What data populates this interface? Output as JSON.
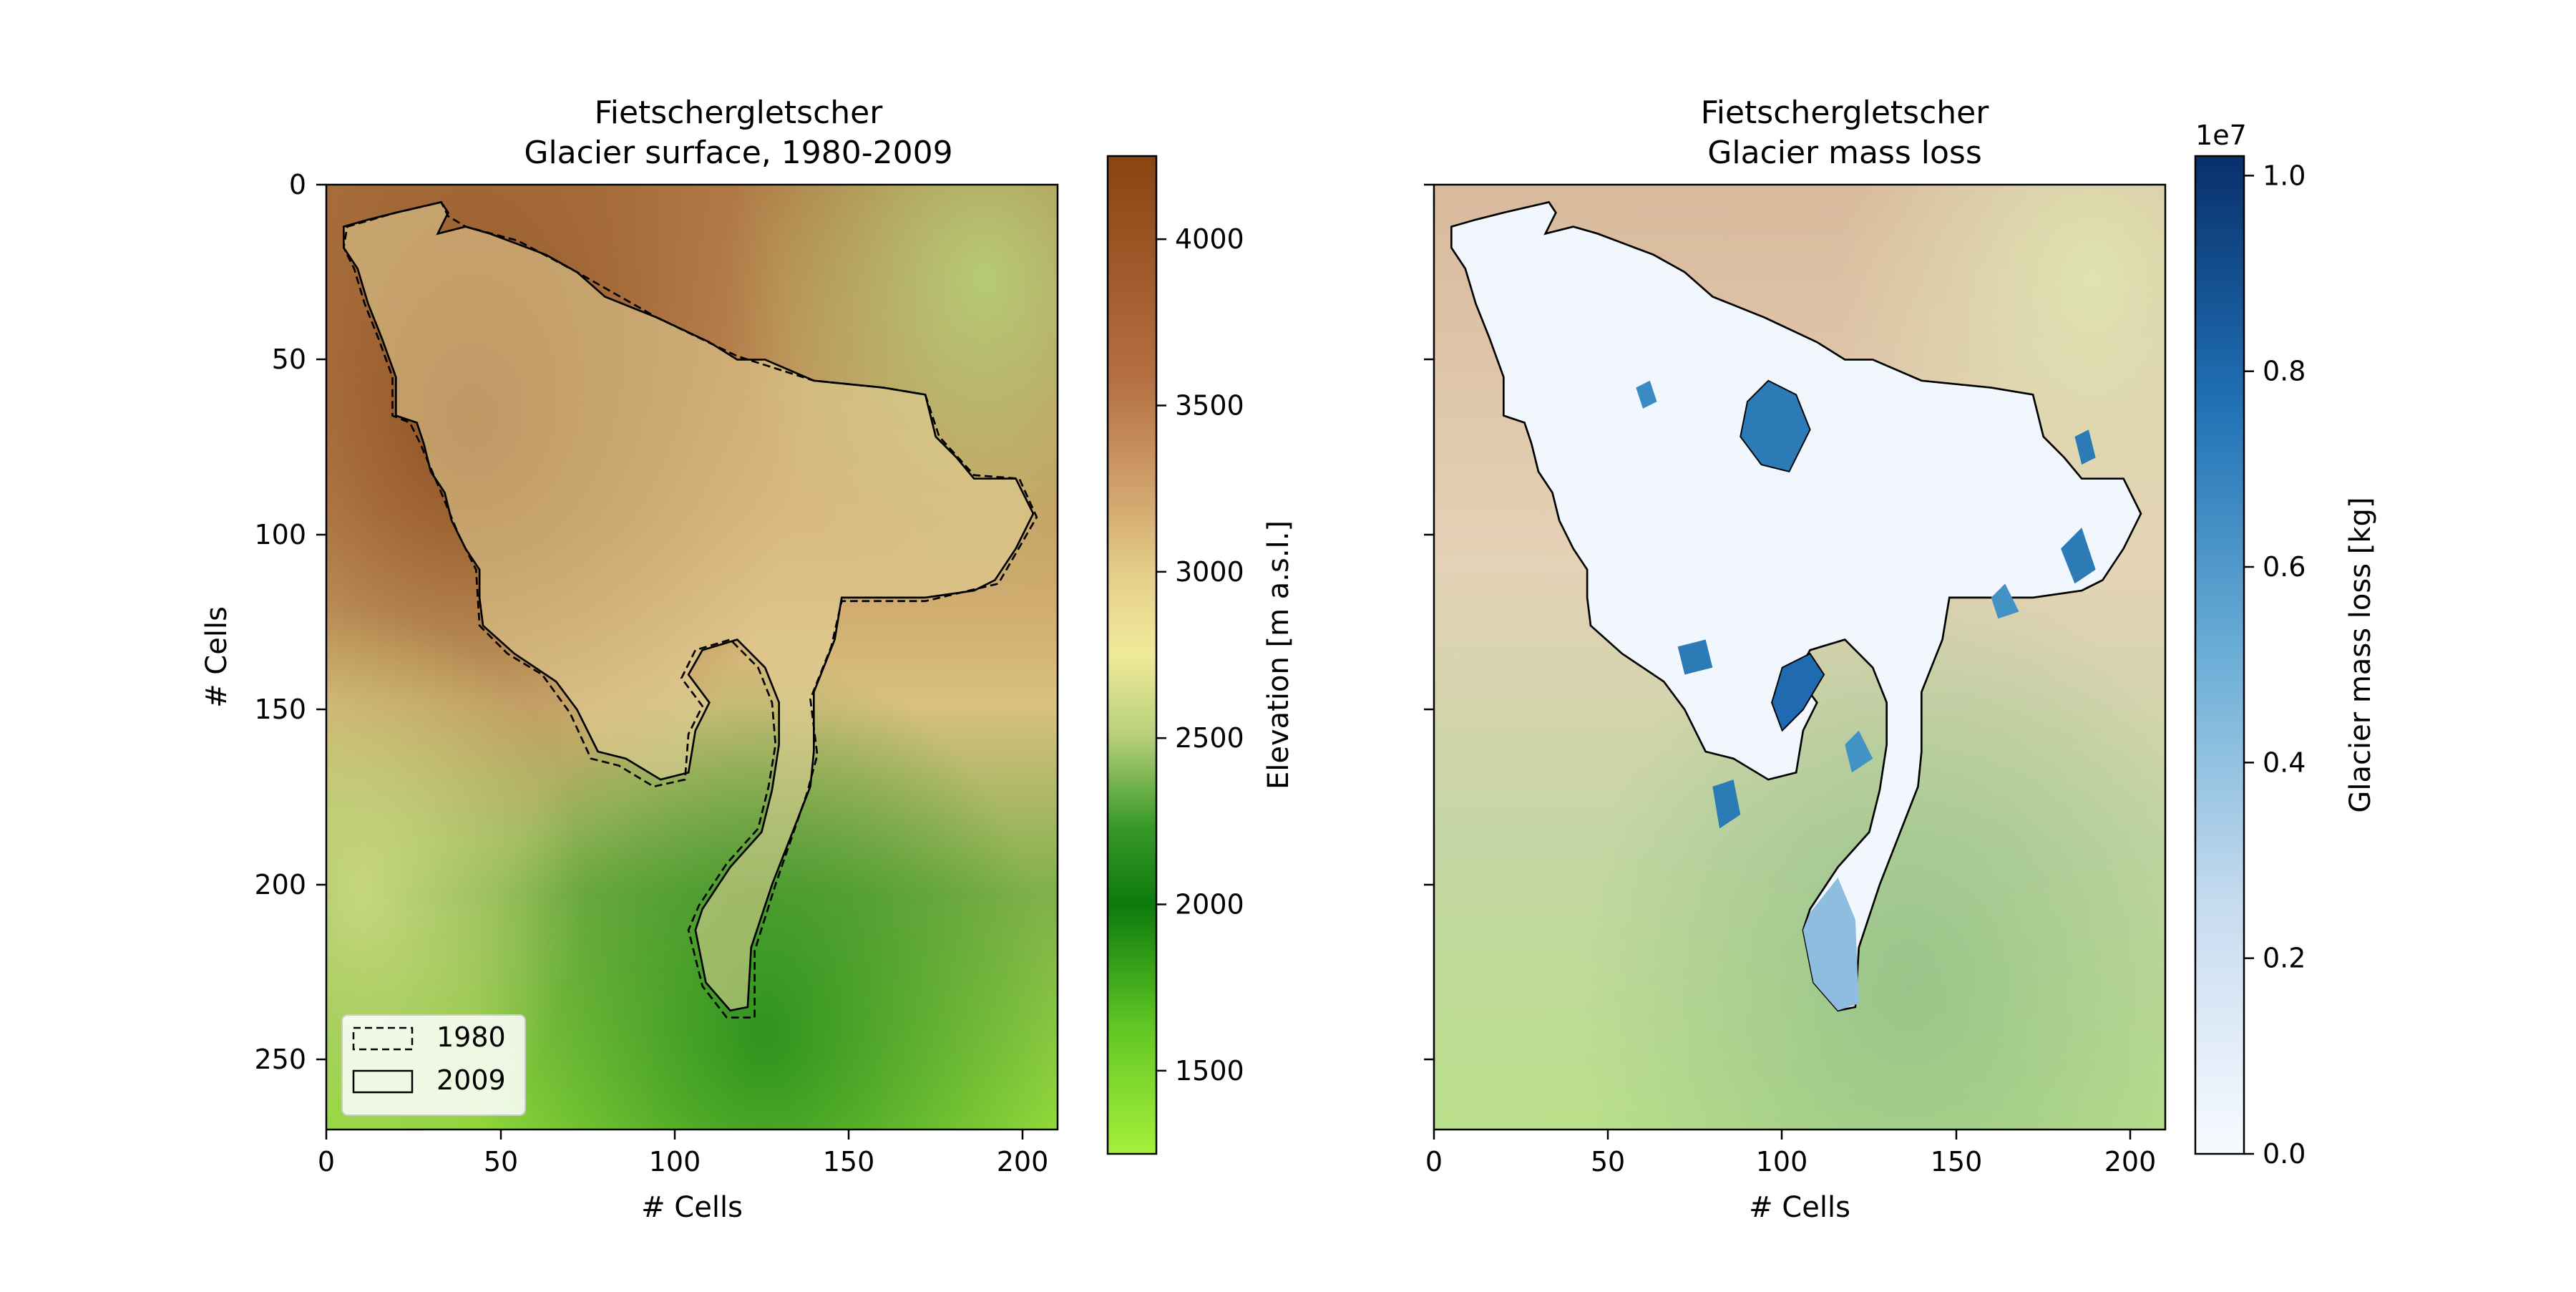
{
  "chart_data": [
    {
      "type": "heatmap",
      "title": "Fietschergletscher\nGlacier surface, 1980-2009",
      "title_lines": [
        "Fietschergletscher",
        "Glacier surface, 1980-2009"
      ],
      "xlabel": "# Cells",
      "ylabel": "# Cells",
      "xlim": [
        0,
        210
      ],
      "ylim": [
        270,
        0
      ],
      "xticks": [
        0,
        50,
        100,
        150,
        200
      ],
      "yticks": [
        0,
        50,
        100,
        150,
        200,
        250
      ],
      "colorbar": {
        "label": "Elevation [m a.s.l.]",
        "range": [
          1250,
          4250
        ],
        "ticks": [
          1500,
          2000,
          2500,
          3000,
          3500,
          4000
        ],
        "colormap": "terrain-like (yellow-green → green → tan → brown)"
      },
      "legend": {
        "position": "lower-left",
        "entries": [
          {
            "label": "1980",
            "style": "dashed"
          },
          {
            "label": "2009",
            "style": "solid"
          }
        ]
      }
    },
    {
      "type": "heatmap",
      "title": "Fietschergletscher\nGlacier mass loss",
      "title_lines": [
        "Fietschergletscher",
        "Glacier mass loss"
      ],
      "xlabel": "# Cells",
      "ylabel": "",
      "xlim": [
        0,
        210
      ],
      "ylim": [
        270,
        0
      ],
      "xticks": [
        0,
        50,
        100,
        150,
        200
      ],
      "yticks": [
        0,
        50,
        100,
        150,
        200,
        250
      ],
      "colorbar": {
        "label": "Glacier mass loss [kg]",
        "multiplier": "1e7",
        "range": [
          0,
          1.02
        ],
        "ticks": [
          0.0,
          0.2,
          0.4,
          0.6,
          0.8,
          1.0
        ],
        "tick_labels": [
          "0.0",
          "0.2",
          "0.4",
          "0.6",
          "0.8",
          "1.0"
        ],
        "colormap": "Blues"
      }
    }
  ]
}
